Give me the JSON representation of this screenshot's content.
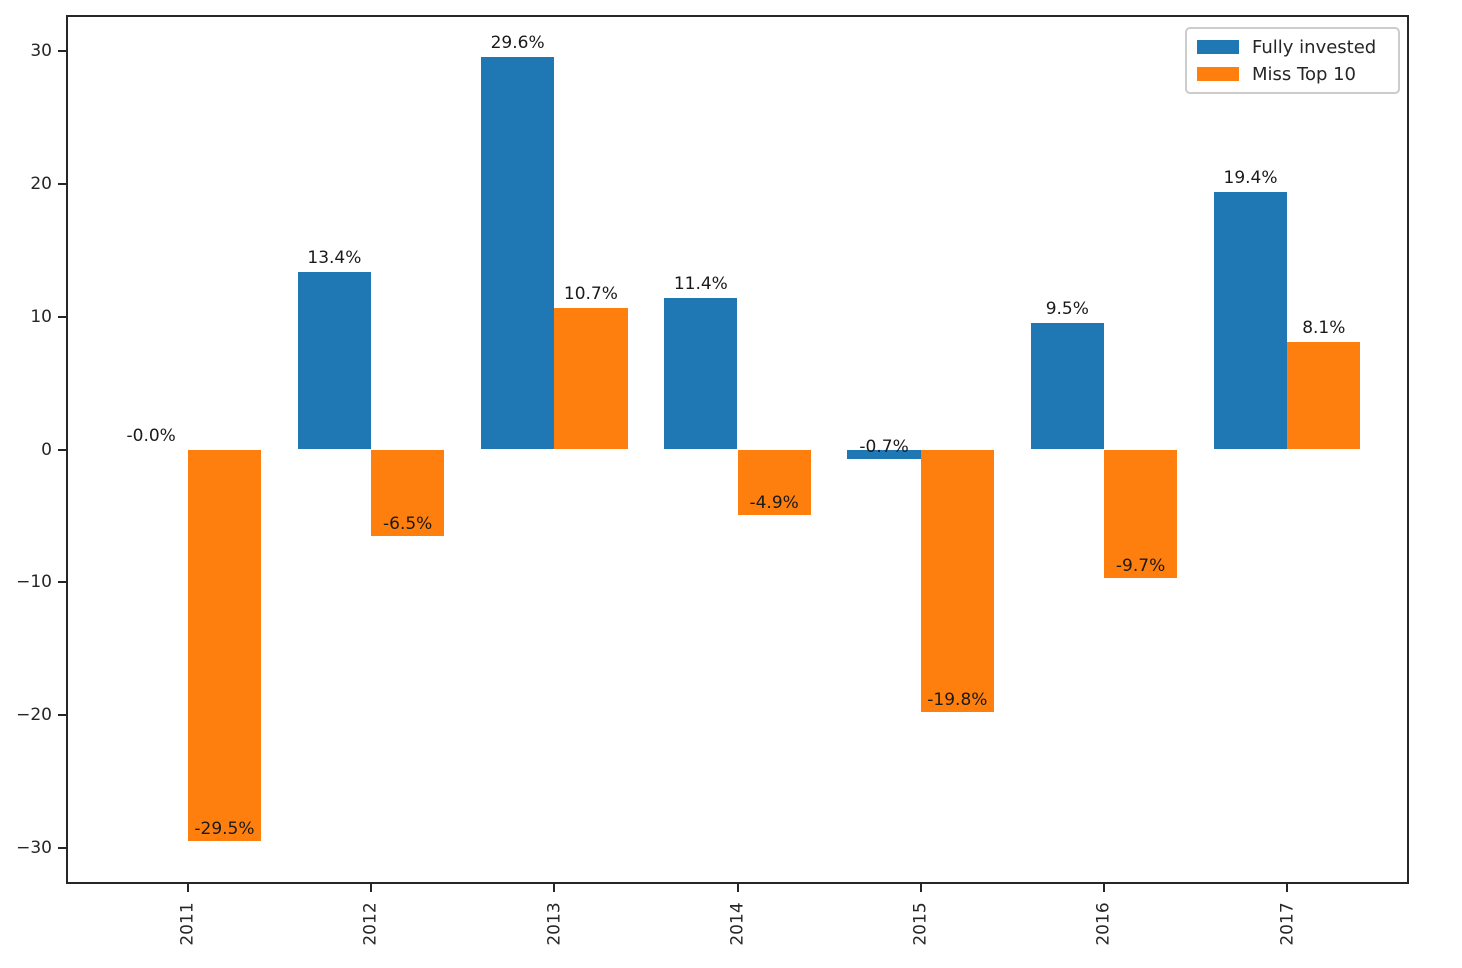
{
  "chart_data": {
    "type": "bar",
    "title": "",
    "xlabel": "",
    "ylabel": "",
    "categories": [
      "2011",
      "2012",
      "2013",
      "2014",
      "2015",
      "2016",
      "2017"
    ],
    "series": [
      {
        "name": "Fully invested",
        "color": "#1f77b4",
        "values": [
          -0.0,
          13.4,
          29.6,
          11.4,
          -0.7,
          9.5,
          19.4
        ],
        "labels": [
          "-0.0%",
          "13.4%",
          "29.6%",
          "11.4%",
          "-0.7%",
          "9.5%",
          "19.4%"
        ]
      },
      {
        "name": "Miss Top 10",
        "color": "#ff7f0e",
        "values": [
          -29.5,
          -6.5,
          10.7,
          -4.9,
          -19.8,
          -9.7,
          8.1
        ],
        "labels": [
          "-29.5%",
          "-6.5%",
          "10.7%",
          "-4.9%",
          "-19.8%",
          "-9.7%",
          "8.1%"
        ]
      }
    ],
    "ylim": [
      -32.6,
      32.6
    ],
    "yticks": [
      -30,
      -20,
      -10,
      0,
      10,
      20,
      30
    ],
    "xtick_rotation": 90,
    "grid": false,
    "bar_width": 0.4,
    "legend_position": "upper right"
  },
  "legend": {
    "items": [
      {
        "label": "Fully invested",
        "color": "#1f77b4"
      },
      {
        "label": "Miss Top 10",
        "color": "#ff7f0e"
      }
    ]
  },
  "colors": {
    "axis": "#262626",
    "label_text": "#1a1a1a",
    "legend_border": "#cccccc",
    "background": "#ffffff"
  }
}
